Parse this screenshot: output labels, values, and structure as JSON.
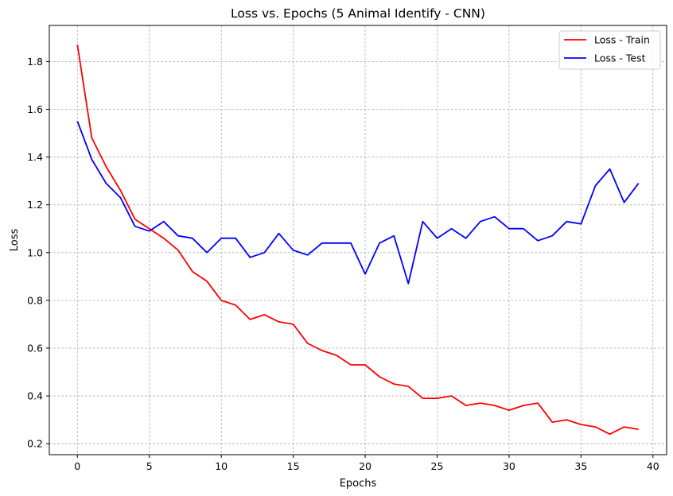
{
  "chart_data": {
    "type": "line",
    "title": "Loss vs. Epochs (5 Animal Identify - CNN)",
    "xlabel": "Epochs",
    "ylabel": "Loss",
    "xlim": [
      -1.95,
      40.95
    ],
    "ylim": [
      0.154,
      1.951
    ],
    "xticks": [
      0,
      5,
      10,
      15,
      20,
      25,
      30,
      35,
      40
    ],
    "yticks": [
      0.2,
      0.4,
      0.6,
      0.8,
      1.0,
      1.2,
      1.4,
      1.6,
      1.8
    ],
    "ytick_labels": [
      "0.2",
      "0.4",
      "0.6",
      "0.8",
      "1.0",
      "1.2",
      "1.4",
      "1.6",
      "1.8"
    ],
    "grid": true,
    "legend_position": "top-right",
    "x": [
      0,
      1,
      2,
      3,
      4,
      5,
      6,
      7,
      8,
      9,
      10,
      11,
      12,
      13,
      14,
      15,
      16,
      17,
      18,
      19,
      20,
      21,
      22,
      23,
      24,
      25,
      26,
      27,
      28,
      29,
      30,
      31,
      32,
      33,
      34,
      35,
      36,
      37,
      38,
      39
    ],
    "series": [
      {
        "name": "Loss - Train",
        "color": "#ff0000",
        "values": [
          1.87,
          1.48,
          1.36,
          1.26,
          1.14,
          1.1,
          1.06,
          1.01,
          0.92,
          0.88,
          0.8,
          0.78,
          0.72,
          0.74,
          0.71,
          0.7,
          0.62,
          0.59,
          0.57,
          0.53,
          0.53,
          0.48,
          0.45,
          0.44,
          0.39,
          0.39,
          0.4,
          0.36,
          0.37,
          0.36,
          0.34,
          0.36,
          0.37,
          0.29,
          0.3,
          0.28,
          0.27,
          0.24,
          0.27,
          0.26
        ]
      },
      {
        "name": "Loss - Test",
        "color": "#0000ff",
        "values": [
          1.55,
          1.39,
          1.29,
          1.23,
          1.11,
          1.09,
          1.13,
          1.07,
          1.06,
          1.0,
          1.06,
          1.06,
          0.98,
          1.0,
          1.08,
          1.01,
          0.99,
          1.04,
          1.04,
          1.04,
          0.91,
          1.04,
          1.07,
          0.87,
          1.13,
          1.06,
          1.1,
          1.06,
          1.13,
          1.15,
          1.1,
          1.1,
          1.05,
          1.07,
          1.13,
          1.12,
          1.28,
          1.35,
          1.21,
          1.29
        ]
      }
    ]
  }
}
